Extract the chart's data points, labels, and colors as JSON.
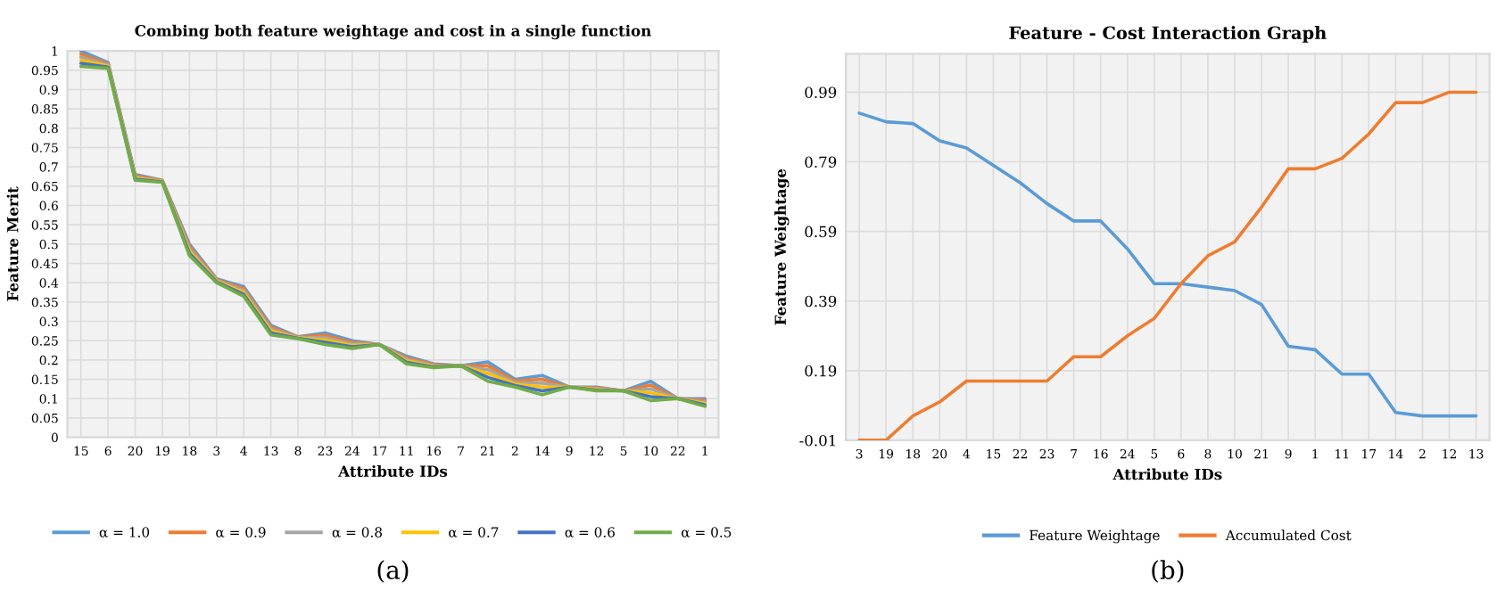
{
  "chart_data": [
    {
      "type": "line",
      "title": "Combing both feature weightage and cost in a single function",
      "xlabel": "Attribute IDs",
      "ylabel": "Feature Merit",
      "categories": [
        "15",
        "6",
        "20",
        "19",
        "18",
        "3",
        "4",
        "13",
        "8",
        "23",
        "24",
        "17",
        "11",
        "16",
        "7",
        "21",
        "2",
        "14",
        "9",
        "12",
        "5",
        "10",
        "22",
        "1"
      ],
      "series": [
        {
          "name": "α = 1.0",
          "color": "#5b9bd5",
          "values": [
            1.0,
            0.97,
            0.68,
            0.665,
            0.5,
            0.41,
            0.39,
            0.29,
            0.26,
            0.27,
            0.25,
            0.24,
            0.21,
            0.19,
            0.185,
            0.195,
            0.15,
            0.16,
            0.13,
            0.13,
            0.12,
            0.145,
            0.1,
            0.1
          ]
        },
        {
          "name": "α = 0.9",
          "color": "#ed7d31",
          "values": [
            0.992,
            0.967,
            0.677,
            0.664,
            0.494,
            0.408,
            0.385,
            0.285,
            0.259,
            0.264,
            0.246,
            0.24,
            0.206,
            0.188,
            0.185,
            0.185,
            0.146,
            0.15,
            0.13,
            0.128,
            0.12,
            0.135,
            0.1,
            0.096
          ]
        },
        {
          "name": "α = 0.8",
          "color": "#a5a5a5",
          "values": [
            0.984,
            0.964,
            0.674,
            0.663,
            0.488,
            0.406,
            0.38,
            0.28,
            0.258,
            0.258,
            0.242,
            0.24,
            0.202,
            0.186,
            0.185,
            0.175,
            0.142,
            0.14,
            0.13,
            0.126,
            0.12,
            0.125,
            0.1,
            0.092
          ]
        },
        {
          "name": "α = 0.7",
          "color": "#ffc000",
          "values": [
            0.976,
            0.961,
            0.671,
            0.662,
            0.482,
            0.404,
            0.375,
            0.275,
            0.257,
            0.252,
            0.238,
            0.24,
            0.198,
            0.184,
            0.185,
            0.165,
            0.138,
            0.13,
            0.13,
            0.124,
            0.12,
            0.115,
            0.1,
            0.088
          ]
        },
        {
          "name": "α = 0.6",
          "color": "#4472c4",
          "values": [
            0.968,
            0.958,
            0.668,
            0.661,
            0.476,
            0.402,
            0.37,
            0.27,
            0.256,
            0.246,
            0.234,
            0.24,
            0.194,
            0.182,
            0.185,
            0.155,
            0.134,
            0.12,
            0.13,
            0.122,
            0.12,
            0.105,
            0.1,
            0.084
          ]
        },
        {
          "name": "α = 0.5",
          "color": "#70ad47",
          "values": [
            0.96,
            0.955,
            0.665,
            0.66,
            0.47,
            0.4,
            0.365,
            0.265,
            0.255,
            0.24,
            0.23,
            0.24,
            0.19,
            0.18,
            0.185,
            0.145,
            0.13,
            0.11,
            0.13,
            0.12,
            0.12,
            0.095,
            0.1,
            0.08
          ]
        }
      ],
      "ylim": [
        0,
        1
      ],
      "yticks": [
        0,
        0.05,
        0.1,
        0.15,
        0.2,
        0.25,
        0.3,
        0.35,
        0.4,
        0.45,
        0.5,
        0.55,
        0.6,
        0.65,
        0.7,
        0.75,
        0.8,
        0.85,
        0.9,
        0.95,
        1
      ],
      "grid": true,
      "legend": "bottom",
      "annotations": [
        "(a)"
      ]
    },
    {
      "type": "line",
      "title": "Feature - Cost Interaction Graph",
      "xlabel": "Attribute IDs",
      "ylabel": "Feature Weightage",
      "categories": [
        "3",
        "19",
        "18",
        "20",
        "4",
        "15",
        "22",
        "23",
        "7",
        "16",
        "24",
        "5",
        "6",
        "8",
        "10",
        "21",
        "9",
        "1",
        "11",
        "17",
        "14",
        "2",
        "12",
        "13"
      ],
      "series": [
        {
          "name": "Feature Weightage",
          "color": "#5b9bd5",
          "values": [
            0.93,
            0.905,
            0.9,
            0.85,
            0.83,
            0.78,
            0.73,
            0.67,
            0.62,
            0.62,
            0.54,
            0.44,
            0.44,
            0.43,
            0.42,
            0.38,
            0.26,
            0.25,
            0.18,
            0.18,
            0.07,
            0.06,
            0.06,
            0.06
          ]
        },
        {
          "name": "Accumulated Cost",
          "color": "#ed7d31",
          "values": [
            -0.01,
            -0.01,
            0.06,
            0.1,
            0.16,
            0.16,
            0.16,
            0.16,
            0.23,
            0.23,
            0.29,
            0.34,
            0.44,
            0.52,
            0.56,
            0.66,
            0.77,
            0.77,
            0.8,
            0.87,
            0.96,
            0.96,
            0.99,
            0.99
          ]
        }
      ],
      "ylim": [
        -0.01,
        1.1
      ],
      "yticks": [
        -0.01,
        0.19,
        0.39,
        0.59,
        0.79,
        0.99
      ],
      "grid": true,
      "legend": "bottom",
      "annotations": [
        "(b)"
      ]
    }
  ]
}
